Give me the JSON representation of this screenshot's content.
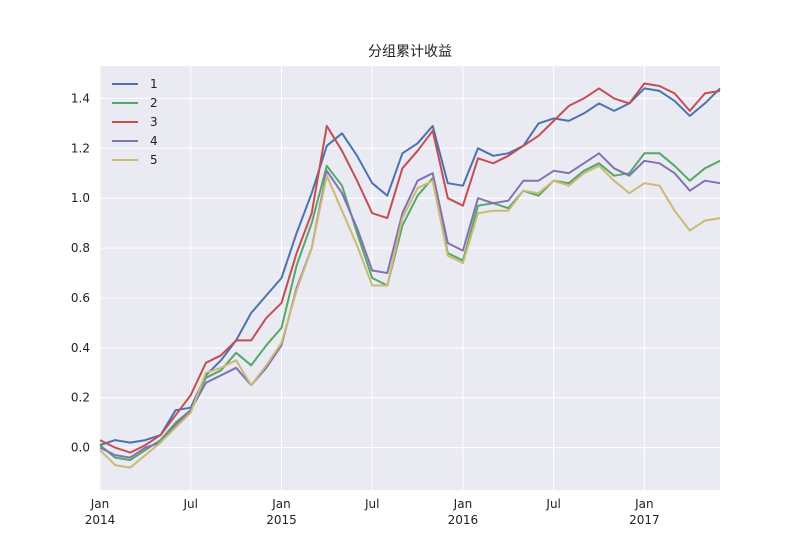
{
  "chart_data": {
    "type": "line",
    "title": "分组累计收益",
    "xlabel": "",
    "ylabel": "",
    "ylim": [
      -0.17,
      1.53
    ],
    "y_ticks": [
      0.0,
      0.2,
      0.4,
      0.6,
      0.8,
      1.0,
      1.2,
      1.4
    ],
    "y_tick_labels": [
      "0.0",
      "0.2",
      "0.4",
      "0.6",
      "0.8",
      "1.0",
      "1.2",
      "1.4"
    ],
    "x_range": [
      "2014-01",
      "2017-06"
    ],
    "x_ticks": [
      {
        "date": "2014-01",
        "label": "Jan",
        "year": "2014"
      },
      {
        "date": "2014-07",
        "label": "Jul",
        "year": ""
      },
      {
        "date": "2015-01",
        "label": "Jan",
        "year": "2015"
      },
      {
        "date": "2015-07",
        "label": "Jul",
        "year": ""
      },
      {
        "date": "2016-01",
        "label": "Jan",
        "year": "2016"
      },
      {
        "date": "2016-07",
        "label": "Jul",
        "year": ""
      },
      {
        "date": "2017-01",
        "label": "Jan",
        "year": "2017"
      }
    ],
    "grid": true,
    "legend_position": "top-left",
    "x": [
      "2014-01",
      "2014-02",
      "2014-03",
      "2014-04",
      "2014-05",
      "2014-06",
      "2014-07",
      "2014-08",
      "2014-09",
      "2014-10",
      "2014-11",
      "2014-12",
      "2015-01",
      "2015-02",
      "2015-03",
      "2015-04",
      "2015-05",
      "2015-06",
      "2015-07",
      "2015-08",
      "2015-09",
      "2015-10",
      "2015-11",
      "2015-12",
      "2016-01",
      "2016-02",
      "2016-03",
      "2016-04",
      "2016-05",
      "2016-06",
      "2016-07",
      "2016-08",
      "2016-09",
      "2016-10",
      "2016-11",
      "2016-12",
      "2017-01",
      "2017-02",
      "2017-03",
      "2017-04",
      "2017-05",
      "2017-06"
    ],
    "series": [
      {
        "name": "1",
        "color": "#4c72b0",
        "values": [
          0.01,
          0.03,
          0.02,
          0.03,
          0.05,
          0.15,
          0.16,
          0.29,
          0.35,
          0.43,
          0.54,
          0.61,
          0.68,
          0.86,
          1.02,
          1.21,
          1.26,
          1.17,
          1.06,
          1.01,
          1.18,
          1.22,
          1.29,
          1.06,
          1.05,
          1.2,
          1.17,
          1.18,
          1.21,
          1.3,
          1.32,
          1.31,
          1.34,
          1.38,
          1.35,
          1.38,
          1.44,
          1.43,
          1.39,
          1.33,
          1.38,
          1.44
        ]
      },
      {
        "name": "2",
        "color": "#55a868",
        "values": [
          0.01,
          -0.04,
          -0.05,
          -0.01,
          0.03,
          0.1,
          0.15,
          0.28,
          0.31,
          0.38,
          0.33,
          0.41,
          0.48,
          0.73,
          0.9,
          1.13,
          1.05,
          0.86,
          0.68,
          0.65,
          0.89,
          1.01,
          1.08,
          0.78,
          0.75,
          0.97,
          0.98,
          0.96,
          1.03,
          1.01,
          1.07,
          1.06,
          1.11,
          1.14,
          1.09,
          1.1,
          1.18,
          1.18,
          1.13,
          1.07,
          1.12,
          1.15
        ]
      },
      {
        "name": "3",
        "color": "#c44e52",
        "values": [
          0.03,
          0.0,
          -0.02,
          0.01,
          0.05,
          0.13,
          0.21,
          0.34,
          0.37,
          0.43,
          0.43,
          0.52,
          0.58,
          0.78,
          0.94,
          1.29,
          1.19,
          1.07,
          0.94,
          0.92,
          1.12,
          1.19,
          1.27,
          1.0,
          0.97,
          1.16,
          1.14,
          1.17,
          1.21,
          1.25,
          1.31,
          1.37,
          1.4,
          1.44,
          1.4,
          1.38,
          1.46,
          1.45,
          1.42,
          1.35,
          1.42,
          1.43
        ]
      },
      {
        "name": "4",
        "color": "#8172b2",
        "values": [
          0.0,
          -0.03,
          -0.04,
          0.0,
          0.02,
          0.09,
          0.15,
          0.26,
          0.29,
          0.32,
          0.25,
          0.32,
          0.41,
          0.64,
          0.8,
          1.11,
          1.02,
          0.88,
          0.71,
          0.7,
          0.94,
          1.07,
          1.1,
          0.82,
          0.79,
          1.0,
          0.98,
          0.99,
          1.07,
          1.07,
          1.11,
          1.1,
          1.14,
          1.18,
          1.12,
          1.09,
          1.15,
          1.14,
          1.1,
          1.03,
          1.07,
          1.06
        ]
      },
      {
        "name": "5",
        "color": "#ccb974",
        "values": [
          -0.01,
          -0.07,
          -0.08,
          -0.03,
          0.02,
          0.08,
          0.14,
          0.3,
          0.32,
          0.35,
          0.25,
          0.33,
          0.42,
          0.63,
          0.8,
          1.09,
          0.95,
          0.81,
          0.65,
          0.65,
          0.92,
          1.04,
          1.07,
          0.77,
          0.74,
          0.94,
          0.95,
          0.95,
          1.03,
          1.02,
          1.07,
          1.05,
          1.1,
          1.13,
          1.07,
          1.02,
          1.06,
          1.05,
          0.95,
          0.87,
          0.91,
          0.92
        ]
      }
    ]
  }
}
